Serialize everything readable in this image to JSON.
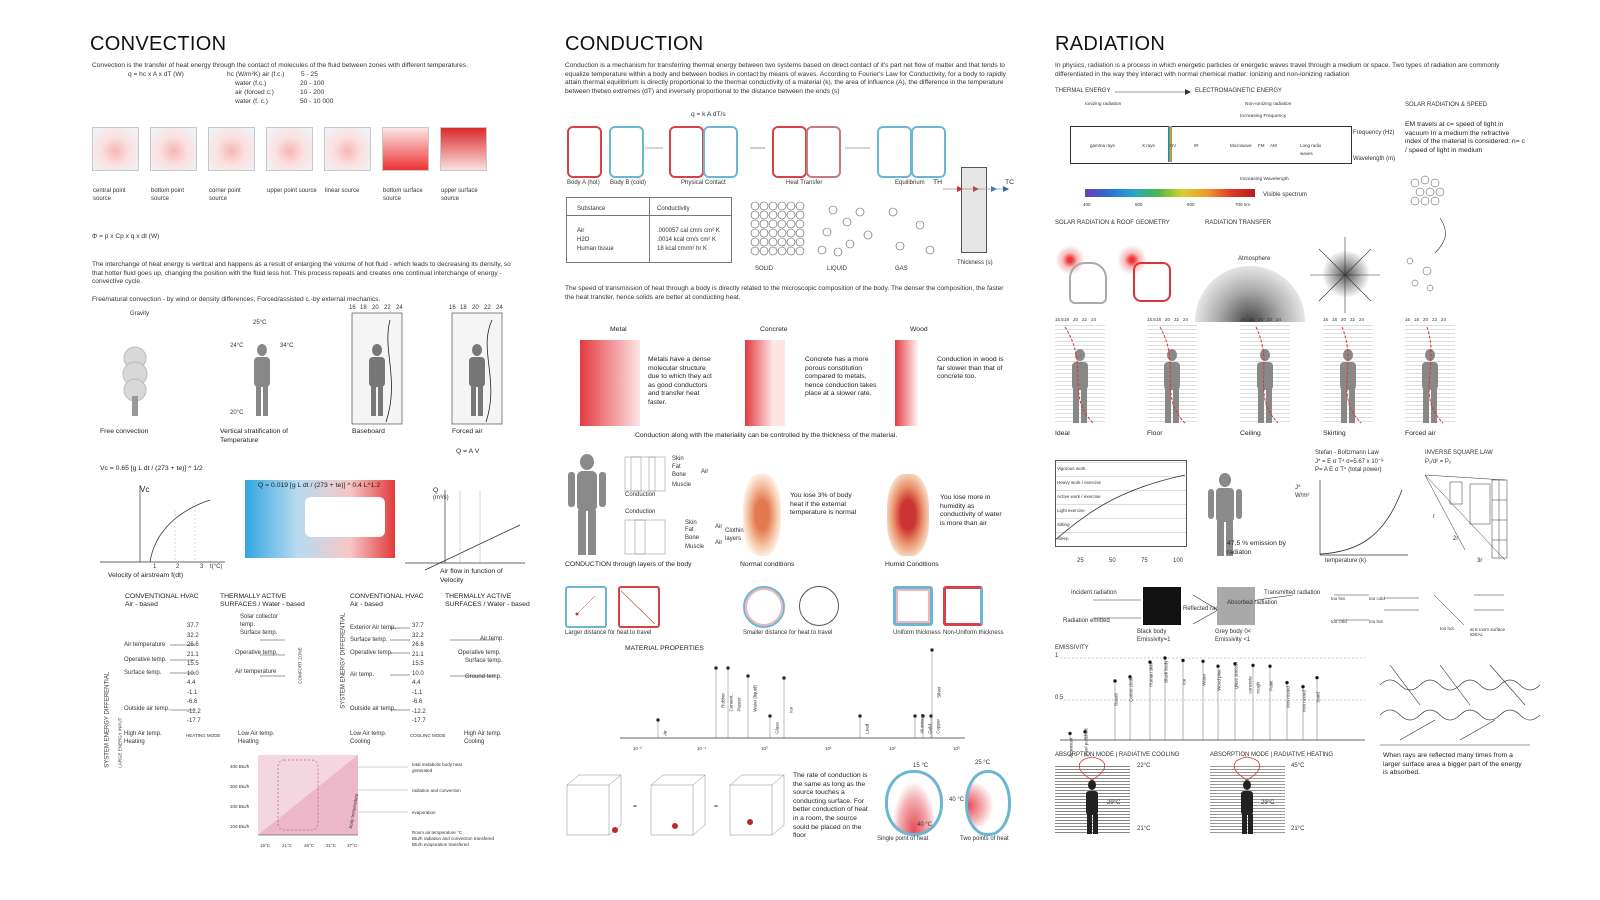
{
  "convection": {
    "title": "CONVECTION",
    "intro": "Convection is the transfer of heat energy through the contact of molecules of the fluid between zones with different temperatures.",
    "formula": "q = hc x A x dT   (W)",
    "hc_title": "hc (W/m²K) air (f.c.)",
    "hc_rows": [
      {
        "k": "",
        "v": "5 - 25"
      },
      {
        "k": "water (f.c.)",
        "v": "20 - 100"
      },
      {
        "k": "air (forced c.)",
        "v": "10 - 200"
      },
      {
        "k": "water (f. c.)",
        "v": "50 - 10 000"
      }
    ],
    "sources": [
      "central point source",
      "bottom point source",
      "corner point source",
      "upper point source",
      "linear source",
      "bottom surface source",
      "upper surface source"
    ],
    "phi_formula": "Φ = p x Cp x q x dt (W)",
    "para2": "The interchange of heat energy is vertical and happens as a result of enlarging the volume of hot fluid - which leads to decreasing its density, so that hotter fluid goes up, changing the position with the fluid less hot. This process repeats and creates one continual interchange of energy - convective cycle.",
    "para3": "Free/natural convection - by wind or density differences; Forced/assisted c.-by external mechanics.",
    "figs": [
      "Free convection",
      "Vertical stratification of Temperature",
      "Baseboard",
      "Forced air"
    ],
    "fig_temps": [
      "Gravity",
      "25°C",
      "24°C",
      "34°C",
      "20°C"
    ],
    "scale": [
      "16",
      "18",
      "20",
      "22",
      "24"
    ],
    "qav": "Q = A V",
    "vc_formula": "Vc = 0.65 [g L dt / (273 + te)] ^ 1/2",
    "q_formula": "Q = 0.019 [g L dt / (273 + te)] ^ 0.4 L^1.2",
    "vc_label": "Vc",
    "vc_caption": "Velocity of airstream f(dt)",
    "q_label": "Q",
    "q_unit": "(m³/s)",
    "q_caption": "Air flow in function of Velocity",
    "tick_1": "1",
    "tick_2": "2",
    "tick_3": "3",
    "tick_unit": "t(°C)",
    "hvac_left_a": "CONVENTIONAL HVAC",
    "hvac_left_a2": "Air - based",
    "hvac_left_b": "THERMALLY ACTIVE",
    "hvac_left_b2": "SURFACES / Water - based",
    "hvac_right_a": "CONVENTIONAL HVAC",
    "hvac_right_a2": "Air - based",
    "hvac_right_b": "THERMALLY ACTIVE",
    "hvac_right_b2": "SURFACES / Water - based",
    "temps": [
      "37.7",
      "32.2",
      "26.6",
      "21.1",
      "15.5",
      "10.0",
      "4.4",
      "-1.1",
      "-6.6",
      "-12.2",
      "-17.7"
    ],
    "left_labels": [
      "Air temperature",
      "Operative temp.",
      "Surface temp.",
      "Outside air temp."
    ],
    "mid_labels": [
      "Solar collector temp.",
      "Surface temp.",
      "Operative temp.",
      "Air temperature"
    ],
    "right_labels_l": [
      "Exterior Air temp.",
      "Surface temp.",
      "Operative temp.",
      "Air temp.",
      "Outside air temp."
    ],
    "right_labels_r": [
      "Air temp.",
      "Operative temp.",
      "Surface temp.",
      "Ground temp."
    ],
    "sys_energy": "SYSTEM ENERGY DIFFERENTIAL",
    "large_input": "LARGE ENERGY INPUT",
    "comfort_zone": "COMFORT ZONE",
    "heating_mode": "HEATING MODE",
    "cooling_mode": "COOLING MODE",
    "bottom_left": [
      "High Air temp. Heating",
      "Low Air temp. Heating",
      "Low Air temp. Cooling",
      "High Air temp. Cooling"
    ],
    "chart_y": [
      "400 Btu/h",
      "300 Btu/h",
      "200 Btu/h",
      "100 Btu/h"
    ],
    "chart_x": [
      "16°C",
      "21°C",
      "26°C",
      "31°C",
      "37°C"
    ],
    "chart_legend": [
      "total metabolic body heat generated",
      "radiation and convection",
      "evaporation",
      "Room air temperature °C",
      "Btu/h radiation and convection transfered",
      "Btu/h evaporation transfered"
    ],
    "body_temp": "body temperature"
  },
  "conduction": {
    "title": "CONDUCTION",
    "intro": "Conduction is a mechanism for transferring thermal energy between two systems based on direct contact of it's part net flow of matter and that tends to equalize temperature within a body and between bodies in contact by means of waves. According to Fourier's Law for Conductivity, for a body to rapidly attain thermal equilibrium is directly proportional to the thermal conductivity of a material (k), the area of influence (A), the difference in the temperature between thetwo extremes (dT) and inversely proportional to the distance between the ends (s)",
    "formula": "q = k A dT/s",
    "stages": [
      "Body A (hot)",
      "Body B (cold)",
      "Physical Contact",
      "Heat Transfer",
      "Equilibrium"
    ],
    "th": "TH",
    "tc": "TC",
    "thickness": "Thickness (s)",
    "table_headers": [
      "Substance",
      "Conductivity"
    ],
    "table_rows": [
      [
        "Air",
        ".000057 cal cm/s cm² K"
      ],
      [
        "H2O",
        ".0014 kcal cm/s cm² K"
      ],
      [
        "Human tissue",
        "18 kcal cm/m² hr  K"
      ]
    ],
    "phases": [
      "SOLID",
      "LIQUID",
      "GAS"
    ],
    "speed_text": "The speed of transmission of heat through a body is directly related to the microscopic composition of the body. The denser the composition, the faster the heat transfer, hence solids are better at conducting heat.",
    "materials": [
      "Metal",
      "Concrete",
      "Wood"
    ],
    "material_text": [
      "Metals have a dense molecular structure due to which they act as good conductors and transfer heat faster.",
      "Concrete has a more porous constitution compared to metals, hence conduction takes place at a slower rate.",
      "Conduction in wood is far slower than that of concrete too."
    ],
    "materiality": "Conduction along with the materiality can be controlled by the thickness of the material.",
    "layers": [
      "Skin",
      "Fat",
      "Bone",
      "Muscle"
    ],
    "air": "Air",
    "conduction_word": "Conduction",
    "clothing": "Clothing layers",
    "layers_caption": "CONDUCTION through layers of the body",
    "normal_text": "You lose 3% of body heat if the external temperature is normal",
    "normal_caption": "Normal conditions",
    "humid_text": "You lose more in humidity as conductivity of water is more than air",
    "humid_caption": "Humid Conditions",
    "sq_captions": [
      "Larger distance for heat to travel",
      "Smaller distance for heat to travel",
      "Uniform thickness",
      "Non-Uniform thickness"
    ],
    "mat_props": "MATERIAL PROPERTIES",
    "mat_names": [
      "Air",
      "Rubber",
      "Cement, Plaster",
      "Water (liquid)",
      "Glass",
      "Ice",
      "Lead",
      "Aluminum",
      "Gold",
      "Copper",
      "Silver"
    ],
    "mat_axis": [
      "10⁻²",
      "10⁻¹",
      "10⁰",
      "10¹",
      "10²",
      "10³"
    ],
    "room_text": "The rate of conduction is the same as long as the source touches a conducting surface. For better conduction of heat in a room, the source sould be placed on the floor",
    "eq": "=",
    "single_caption": "Single point of heat",
    "two_caption": "Two points of heat",
    "temps": [
      "15 °C",
      "40 °C",
      "25 °C",
      "40 °C"
    ]
  },
  "radiation": {
    "title": "RADIATION",
    "intro": "In physics, radiation is a process in which energetic particles or energetic waves travel through a medium or space. Two types of radiation are commonly differentiated in the way they interact with normal chemical matter: ionizing and non-ionizing radiation",
    "thermal": "THERMAL ENERGY",
    "em": "ELECTROMAGNETIC ENERGY",
    "ionizing": "Ionizing radiation",
    "nonionizing": "Non-ionizing radiation",
    "inc_freq": "Increasing Frequency",
    "inc_wave": "Increasing Wavelength",
    "freq_unit": "Frequency (Hz)",
    "wave_unit": "Wavelength (m)",
    "bands": [
      "gamma rays",
      "X rays",
      "UV",
      "IR",
      "Microwave",
      "FM",
      "AM",
      "Long radio waves"
    ],
    "visible": "Visible spectrum",
    "vis_ticks": [
      "400",
      "500",
      "600",
      "700 nm"
    ],
    "solar_speed_title": "SOLAR RADIATION & SPEED",
    "solar_speed_text": "EM travels at c= speed of light in vacuum In a medium the refractive index of the material is considered: n= c / speed of light in medium",
    "roof_title": "SOLAR RADIATION & ROOF GEOMETRY",
    "transfer_title": "RADIATION TRANSFER",
    "atmosphere": "Atmosphere",
    "figs": [
      "Ideal",
      "Floor",
      "Ceiling",
      "Skirting",
      "Forced air"
    ],
    "scale": [
      "15.5",
      "18",
      "20",
      "22",
      "24"
    ],
    "scale2": [
      "16",
      "18",
      "20",
      "22",
      "24"
    ],
    "work": [
      "Vigorous work",
      "Heavy work / exercise",
      "Active work / exercise",
      "Light exercise",
      "Sitting",
      "Sleep"
    ],
    "work_x": [
      "25",
      "50",
      "75",
      "100"
    ],
    "emission": "47.5 % emission by radiaton",
    "sb_title": "Stefan - Boltzmann Law",
    "sb_1": "J* = E σ T⁴    σ=5.67 x 10⁻⁸",
    "sb_2": "P= A E σ T⁴ (total power)",
    "sb_y": "J* W/m²",
    "sb_x": "temperature (k)",
    "isl_title": "INVERSE SQUARE LAW",
    "isl_formula": "P₁/d² = P₂",
    "isl_r": [
      "r",
      "2r",
      "3r"
    ],
    "incident": "Incident radiation",
    "emitted": "Radiation emitted",
    "black_body": "Black body Emissivity=1",
    "reflected": "Reflected radiation",
    "transmitted": "Transmitted radiation",
    "absorbed": "Absorbed radiation",
    "grey_body": "Grey body 0< Emissivity <1",
    "too_hot": "too hot",
    "too_cold": "too cold",
    "ideal_small": "at 6 room surface IDEAL",
    "emissivity": "EMISSIVITY",
    "em_ticks": [
      "1",
      "0.5"
    ],
    "em_mats": [
      "Aluminum",
      "Steel polished",
      "Basalt",
      "Cotton cloth",
      "Human skin",
      "Black body",
      "Ice",
      "Water",
      "Wood pine",
      "glass smooth",
      "concrete rough",
      "Paint",
      "Iron rusted",
      "Iron rusted",
      "Sand"
    ],
    "cool_title": "ABSORPTION MODE | RADIATIVE COOLING",
    "heat_title": "ABSORPTION MODE | RADIATIVE HEATING",
    "cool_temps": [
      "22°C",
      "29°C",
      "21°C"
    ],
    "heat_temps": [
      "45°C",
      "29°C",
      "21°C"
    ],
    "ray_text": "When rays are reflected many times from a larger surface area a bigger part of the energy is absorbed."
  }
}
